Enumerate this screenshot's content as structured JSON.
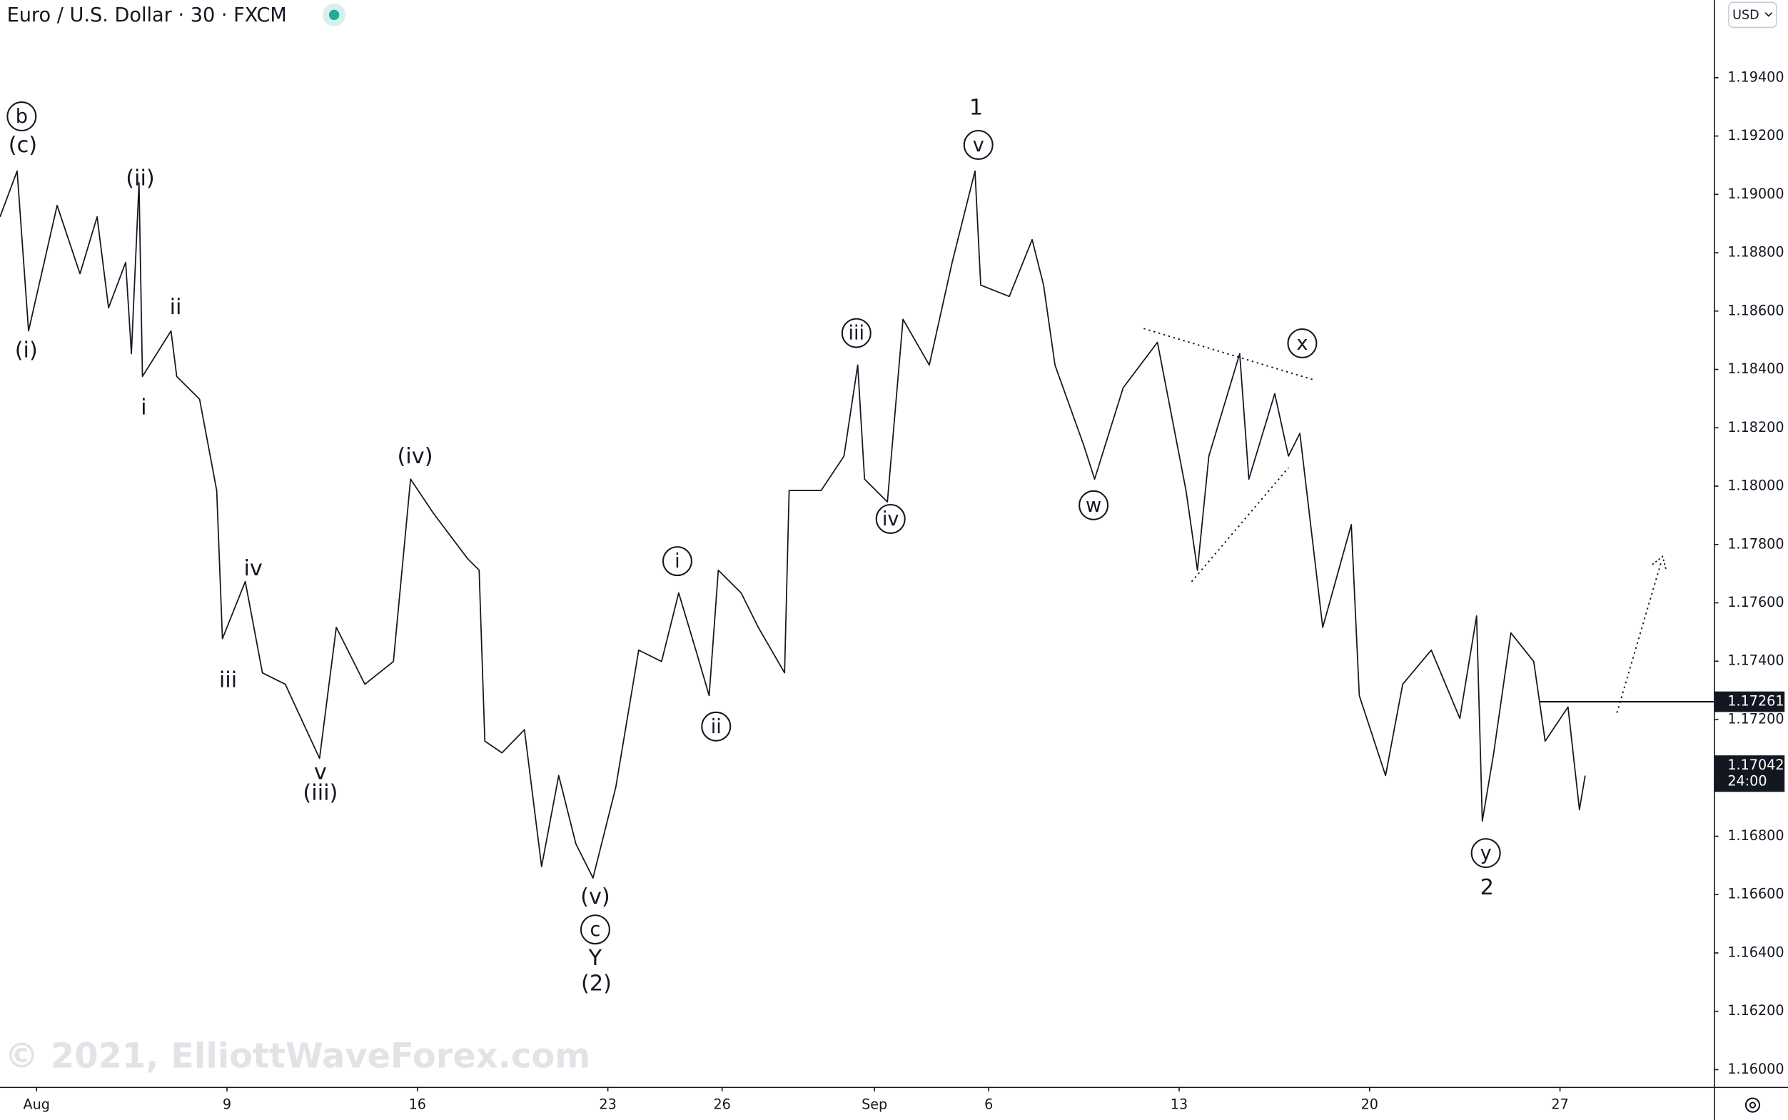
{
  "chart_data": {
    "type": "line",
    "title": "Euro / U.S. Dollar · 30 · FXCM",
    "watermark": "© 2021, ElliottWaveForex.com",
    "currency": "USD",
    "x": [
      -0.96,
      -0.51,
      -0.21,
      0.54,
      1.14,
      1.59,
      1.89,
      2.34,
      2.49,
      2.69,
      2.78,
      3.53,
      3.68,
      4.28,
      4.73,
      4.88,
      5.48,
      5.93,
      6.53,
      7.43,
      7.87,
      8.62,
      9.37,
      9.82,
      10.42,
      11.32,
      11.62,
      11.77,
      12.22,
      12.81,
      13.26,
      13.71,
      14.16,
      14.61,
      15.21,
      15.81,
      16.41,
      16.86,
      17.31,
      17.66,
      17.9,
      18.5,
      18.95,
      19.64,
      19.76,
      20.6,
      21.2,
      21.56,
      21.74,
      22.34,
      22.75,
      23.44,
      24.04,
      24.64,
      24.79,
      25.54,
      26.14,
      26.44,
      26.74,
      27.49,
      27.78,
      28.53,
      29.43,
      30.18,
      30.48,
      30.78,
      31.59,
      31.83,
      32.51,
      32.87,
      33.17,
      33.77,
      34.52,
      34.73,
      35.42,
      35.87,
      36.62,
      37.37,
      37.81,
      37.96,
      38.26,
      38.71,
      39.31,
      39.61,
      40.21,
      40.51,
      40.66
    ],
    "series": [
      {
        "name": "EURUSD",
        "color": "#131722",
        "values": [
          1.18923,
          1.1908,
          1.18532,
          1.18962,
          1.18728,
          1.18923,
          1.18611,
          1.18767,
          1.18454,
          1.1904,
          1.18376,
          1.18532,
          1.18376,
          1.18298,
          1.17985,
          1.17477,
          1.17673,
          1.1736,
          1.17321,
          1.17067,
          1.17516,
          1.17321,
          1.17399,
          1.18024,
          1.17907,
          1.17751,
          1.17712,
          1.17126,
          1.17086,
          1.17165,
          1.16696,
          1.17008,
          1.16774,
          1.16657,
          1.16969,
          1.17438,
          1.17399,
          1.17634,
          1.17438,
          1.17282,
          1.17712,
          1.17634,
          1.17516,
          1.1736,
          1.17985,
          1.17985,
          1.18103,
          1.18415,
          1.18024,
          1.17946,
          1.18572,
          1.18415,
          1.18767,
          1.1908,
          1.18689,
          1.1865,
          1.18845,
          1.18689,
          1.18415,
          1.18142,
          1.18024,
          1.18337,
          1.18493,
          1.17985,
          1.17712,
          1.18103,
          1.18454,
          1.18024,
          1.18317,
          1.18103,
          1.18181,
          1.17516,
          1.17868,
          1.17282,
          1.17008,
          1.17321,
          1.17438,
          1.17204,
          1.17555,
          1.16852,
          1.17086,
          1.17497,
          1.17399,
          1.17126,
          1.17243,
          1.16891,
          1.17008
        ]
      }
    ],
    "xlim": [
      -0.96,
      44.04
    ],
    "xticks": [
      {
        "value": 0,
        "label": "Aug"
      },
      {
        "value": 5,
        "label": "9"
      },
      {
        "value": 10,
        "label": "16"
      },
      {
        "value": 15,
        "label": "23"
      },
      {
        "value": 18,
        "label": "26"
      },
      {
        "value": 22,
        "label": "Sep"
      },
      {
        "value": 25,
        "label": "6"
      },
      {
        "value": 30,
        "label": "13"
      },
      {
        "value": 35,
        "label": "20"
      },
      {
        "value": 40,
        "label": "27"
      }
    ],
    "ylim": [
      1.15941,
      1.19666
    ],
    "yticks": [
      {
        "value": 1.16,
        "label": "1.16000"
      },
      {
        "value": 1.162,
        "label": "1.16200"
      },
      {
        "value": 1.164,
        "label": "1.16400"
      },
      {
        "value": 1.166,
        "label": "1.16600"
      },
      {
        "value": 1.168,
        "label": "1.16800"
      },
      {
        "value": 1.17,
        "label": "1.17000"
      },
      {
        "value": 1.172,
        "label": "1.17200"
      },
      {
        "value": 1.174,
        "label": "1.17400"
      },
      {
        "value": 1.176,
        "label": "1.17600"
      },
      {
        "value": 1.178,
        "label": "1.17800"
      },
      {
        "value": 1.18,
        "label": "1.18000"
      },
      {
        "value": 1.182,
        "label": "1.18200"
      },
      {
        "value": 1.184,
        "label": "1.18400"
      },
      {
        "value": 1.186,
        "label": "1.18600"
      },
      {
        "value": 1.188,
        "label": "1.18800"
      },
      {
        "value": 1.19,
        "label": "1.19000"
      },
      {
        "value": 1.192,
        "label": "1.19200"
      },
      {
        "value": 1.194,
        "label": "1.19400"
      }
    ],
    "level_line": {
      "value": 1.17261,
      "label": "1.17261"
    },
    "last_price": {
      "value": 1.17042,
      "label": "1.17042",
      "countdown": "24:00"
    },
    "annotations": [
      {
        "text": "b",
        "circled": true
      },
      {
        "text": "(c)",
        "circled": false
      },
      {
        "text": "(ii)",
        "circled": false
      },
      {
        "text": "ii",
        "circled": false
      },
      {
        "text": "(i)",
        "circled": false
      },
      {
        "text": "i",
        "circled": false
      },
      {
        "text": "iv",
        "circled": false
      },
      {
        "text": "iii",
        "circled": false
      },
      {
        "text": "v",
        "circled": false
      },
      {
        "text": "(iii)",
        "circled": false
      },
      {
        "text": "(iv)",
        "circled": false
      },
      {
        "text": "(v)",
        "circled": false
      },
      {
        "text": "c",
        "circled": true
      },
      {
        "text": "Y",
        "circled": false
      },
      {
        "text": "(2)",
        "circled": false
      },
      {
        "text": "i",
        "circled": true
      },
      {
        "text": "ii",
        "circled": true
      },
      {
        "text": "iii",
        "circled": true
      },
      {
        "text": "iv",
        "circled": true
      },
      {
        "text": "1",
        "circled": false
      },
      {
        "text": "v",
        "circled": true
      },
      {
        "text": "w",
        "circled": true
      },
      {
        "text": "x",
        "circled": true
      },
      {
        "text": "y",
        "circled": true
      },
      {
        "text": "2",
        "circled": false
      }
    ]
  }
}
